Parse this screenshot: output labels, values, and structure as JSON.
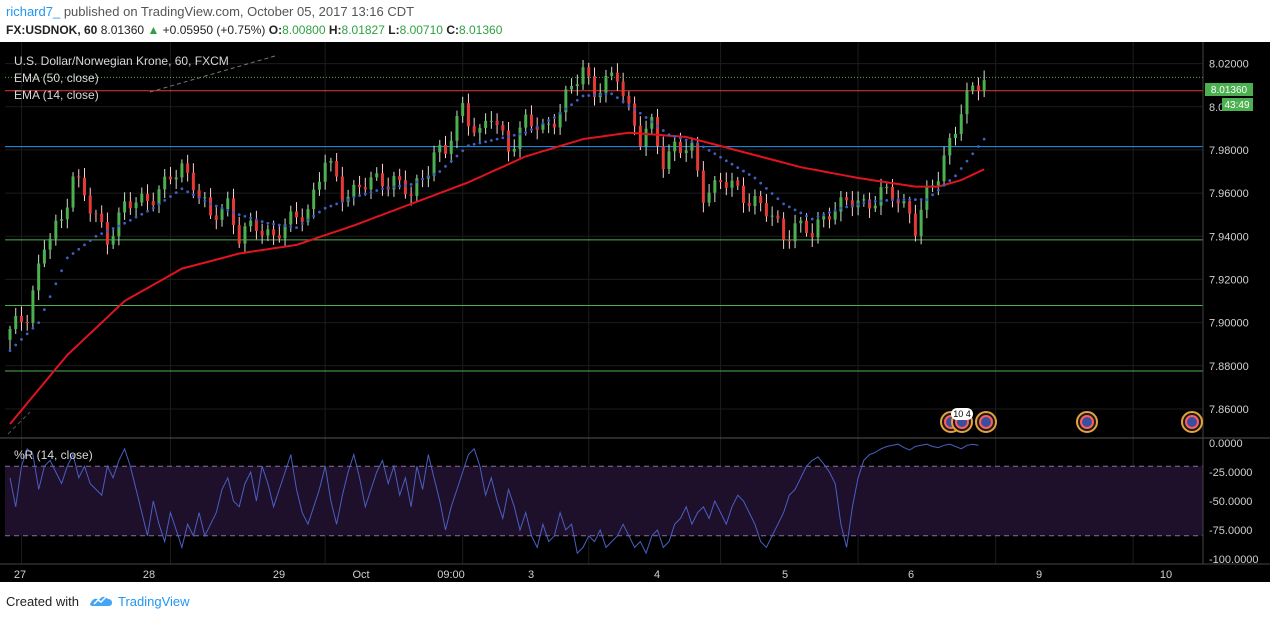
{
  "header": {
    "author": "richard7_",
    "published_text": "published on TradingView.com, October 05, 2017 13:16 CDT",
    "symbol": "FX:USDNOK, 60",
    "last": "8.01360",
    "change": "+0.05950 (+0.75%)",
    "open_label": "O:",
    "open": "8.00800",
    "high_label": "H:",
    "high": "8.01827",
    "low_label": "L:",
    "low": "8.00710",
    "close_label": "C:",
    "close": "8.01360"
  },
  "chart_overlay": {
    "title": "U.S. Dollar/Norwegian Krone, 60, FXCM",
    "ema50_label": "EMA (50, close)",
    "ema14_label": "EMA (14, close)",
    "price_tag": "8.01360",
    "countdown": "43:49",
    "wr_label": "%R (14, close)",
    "event_badge": "10 4"
  },
  "colors": {
    "background": "#000000",
    "up_candle": "#4caf50",
    "down_candle": "#e53935",
    "ema50": "#e0141e",
    "ema14_dots": "#3f5fc4",
    "wr_line": "#4a5fc1",
    "wr_band": "#1e0f2a",
    "price_tag_bg": "#4caf50"
  },
  "chart_data": [
    {
      "type": "candlestick",
      "title": "U.S. Dollar/Norwegian Krone, 60, FXCM",
      "x_ticks": [
        "27",
        "28",
        "29",
        "Oct",
        "09:00",
        "3",
        "4",
        "5",
        "6",
        "9",
        "10"
      ],
      "y_ticks": [
        "8.02000",
        "8.00000",
        "7.98000",
        "7.96000",
        "7.94000",
        "7.92000",
        "7.90000",
        "7.88000",
        "7.86000"
      ],
      "ylim": [
        7.847,
        8.03
      ],
      "horizontal_levels": [
        {
          "value": 8.0074,
          "color": "#e53935"
        },
        {
          "value": 7.9815,
          "color": "#2196f3"
        },
        {
          "value": 7.9383,
          "color": "#4caf50"
        },
        {
          "value": 7.9079,
          "color": "#4caf50"
        },
        {
          "value": 7.8776,
          "color": "#4caf50"
        }
      ],
      "close_path": [
        [
          0,
          7.895
        ],
        [
          3,
          7.905
        ],
        [
          6,
          7.935
        ],
        [
          9,
          7.947
        ],
        [
          11,
          7.97
        ],
        [
          14,
          7.952
        ],
        [
          17,
          7.94
        ],
        [
          20,
          7.953
        ],
        [
          24,
          7.958
        ],
        [
          27,
          7.963
        ],
        [
          30,
          7.972
        ],
        [
          32,
          7.966
        ],
        [
          35,
          7.947
        ],
        [
          38,
          7.956
        ],
        [
          40,
          7.94
        ],
        [
          43,
          7.944
        ],
        [
          46,
          7.941
        ],
        [
          49,
          7.946
        ],
        [
          52,
          7.953
        ],
        [
          55,
          7.975
        ],
        [
          58,
          7.96
        ],
        [
          61,
          7.963
        ],
        [
          64,
          7.965
        ],
        [
          67,
          7.967
        ],
        [
          70,
          7.958
        ],
        [
          72,
          7.967
        ],
        [
          74,
          7.98
        ],
        [
          76,
          7.978
        ],
        [
          79,
          8.0
        ],
        [
          82,
          7.987
        ],
        [
          84,
          7.995
        ],
        [
          87,
          7.982
        ],
        [
          90,
          7.992
        ],
        [
          93,
          7.99
        ],
        [
          96,
          7.998
        ],
        [
          99,
          8.013
        ],
        [
          100,
          8.018
        ],
        [
          102,
          8.008
        ],
        [
          104,
          8.01
        ],
        [
          106,
          8.014
        ],
        [
          108,
          8.0
        ],
        [
          110,
          7.985
        ],
        [
          112,
          7.99
        ],
        [
          114,
          7.975
        ],
        [
          116,
          7.983
        ],
        [
          119,
          7.978
        ],
        [
          121,
          7.96
        ],
        [
          124,
          7.966
        ],
        [
          127,
          7.96
        ],
        [
          130,
          7.957
        ],
        [
          133,
          7.948
        ],
        [
          135,
          7.94
        ],
        [
          137,
          7.946
        ],
        [
          140,
          7.94
        ],
        [
          143,
          7.953
        ],
        [
          146,
          7.955
        ],
        [
          149,
          7.955
        ],
        [
          152,
          7.96
        ],
        [
          154,
          7.958
        ],
        [
          157,
          7.952
        ],
        [
          158,
          7.945
        ],
        [
          160,
          7.958
        ],
        [
          162,
          7.968
        ],
        [
          164,
          7.985
        ],
        [
          166,
          7.998
        ],
        [
          168,
          8.007
        ],
        [
          170,
          8.0136
        ]
      ],
      "ema50_points": [
        [
          0,
          7.853
        ],
        [
          10,
          7.885
        ],
        [
          20,
          7.91
        ],
        [
          30,
          7.925
        ],
        [
          40,
          7.932
        ],
        [
          50,
          7.936
        ],
        [
          60,
          7.945
        ],
        [
          70,
          7.955
        ],
        [
          80,
          7.965
        ],
        [
          90,
          7.977
        ],
        [
          100,
          7.985
        ],
        [
          108,
          7.988
        ],
        [
          118,
          7.986
        ],
        [
          128,
          7.979
        ],
        [
          138,
          7.972
        ],
        [
          148,
          7.967
        ],
        [
          158,
          7.963
        ],
        [
          162,
          7.963
        ],
        [
          166,
          7.966
        ],
        [
          170,
          7.971
        ]
      ],
      "ema14_points": [
        [
          0,
          7.887
        ],
        [
          5,
          7.9
        ],
        [
          10,
          7.93
        ],
        [
          15,
          7.94
        ],
        [
          20,
          7.946
        ],
        [
          25,
          7.953
        ],
        [
          30,
          7.962
        ],
        [
          35,
          7.955
        ],
        [
          40,
          7.95
        ],
        [
          45,
          7.946
        ],
        [
          50,
          7.944
        ],
        [
          55,
          7.953
        ],
        [
          60,
          7.958
        ],
        [
          65,
          7.962
        ],
        [
          70,
          7.964
        ],
        [
          75,
          7.97
        ],
        [
          80,
          7.982
        ],
        [
          85,
          7.985
        ],
        [
          90,
          7.988
        ],
        [
          95,
          7.995
        ],
        [
          100,
          8.005
        ],
        [
          105,
          8.006
        ],
        [
          110,
          7.997
        ],
        [
          115,
          7.987
        ],
        [
          120,
          7.983
        ],
        [
          125,
          7.975
        ],
        [
          130,
          7.967
        ],
        [
          135,
          7.955
        ],
        [
          140,
          7.948
        ],
        [
          145,
          7.953
        ],
        [
          150,
          7.956
        ],
        [
          155,
          7.957
        ],
        [
          160,
          7.957
        ],
        [
          165,
          7.968
        ],
        [
          170,
          7.985
        ]
      ]
    },
    {
      "type": "line",
      "title": "%R (14, close)",
      "y_ticks": [
        "0.0000",
        "-25.0000",
        "-50.0000",
        "-75.0000",
        "-100.0000"
      ],
      "ylim": [
        -100,
        0
      ],
      "bands": [
        -20,
        -80
      ],
      "series": [
        {
          "values": [
            -30,
            -55,
            -20,
            -5,
            -10,
            -40,
            -20,
            -15,
            -25,
            -35,
            -20,
            -10,
            -30,
            -20,
            -35,
            -40,
            -45,
            -20,
            -30,
            -15,
            -5,
            -20,
            -40,
            -60,
            -80,
            -50,
            -70,
            -85,
            -60,
            -75,
            -90,
            -70,
            -80,
            -60,
            -80,
            -70,
            -60,
            -40,
            -30,
            -50,
            -55,
            -35,
            -25,
            -50,
            -20,
            -35,
            -55,
            -40,
            -25,
            -10,
            -40,
            -60,
            -70,
            -55,
            -40,
            -20,
            -50,
            -70,
            -45,
            -25,
            -10,
            -30,
            -55,
            -40,
            -25,
            -15,
            -35,
            -20,
            -45,
            -30,
            -55,
            -20,
            -40,
            -10,
            -30,
            -50,
            -75,
            -55,
            -40,
            -25,
            -10,
            -5,
            -20,
            -45,
            -30,
            -50,
            -65,
            -40,
            -55,
            -75,
            -60,
            -80,
            -90,
            -70,
            -85,
            -80,
            -60,
            -75,
            -70,
            -95,
            -90,
            -80,
            -85,
            -75,
            -90,
            -85,
            -80,
            -70,
            -80,
            -90,
            -85,
            -95,
            -80,
            -75,
            -90,
            -85,
            -70,
            -65,
            -55,
            -70,
            -60,
            -55,
            -65,
            -50,
            -60,
            -70,
            -55,
            -45,
            -50,
            -60,
            -70,
            -85,
            -90,
            -80,
            -70,
            -60,
            -45,
            -40,
            -30,
            -20,
            -15,
            -12,
            -18,
            -25,
            -35,
            -70,
            -90,
            -55,
            -30,
            -15,
            -10,
            -8,
            -5,
            -3,
            -2,
            -1,
            -4,
            -6,
            -3,
            -2,
            -1,
            -3,
            -4,
            -2,
            -1,
            -3,
            -5,
            -2,
            -1,
            -2
          ]
        }
      ]
    }
  ],
  "footer": {
    "created_with": "Created with",
    "brand": "TradingView"
  }
}
